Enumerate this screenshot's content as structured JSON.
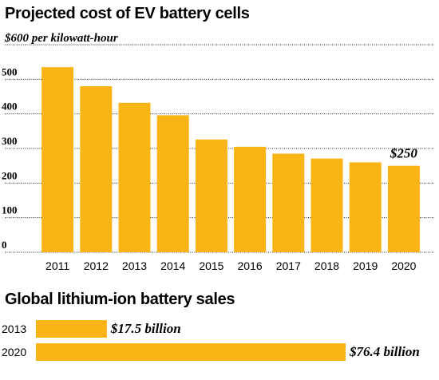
{
  "chart_data": [
    {
      "type": "bar",
      "title": "Projected cost of EV battery cells",
      "unit_label": "$600 per kilowatt-hour",
      "categories": [
        "2011",
        "2012",
        "2013",
        "2014",
        "2015",
        "2016",
        "2017",
        "2018",
        "2019",
        "2020"
      ],
      "values": [
        535,
        480,
        432,
        396,
        326,
        305,
        285,
        271,
        260,
        250
      ],
      "yticks": [
        "500",
        "400",
        "300",
        "200",
        "100",
        "0"
      ],
      "ytick_values": [
        500,
        400,
        300,
        200,
        100,
        0
      ],
      "ylim": [
        0,
        600
      ],
      "grid": true,
      "annotation": {
        "category": "2020",
        "text": "$250"
      },
      "color": "#FBB416"
    },
    {
      "type": "bar",
      "orientation": "horizontal",
      "title": "Global lithium-ion battery sales",
      "categories": [
        "2013",
        "2020"
      ],
      "values": [
        17.5,
        76.4
      ],
      "labels": [
        "$17.5 billion",
        "$76.4 billion"
      ],
      "color": "#FBB416"
    }
  ]
}
